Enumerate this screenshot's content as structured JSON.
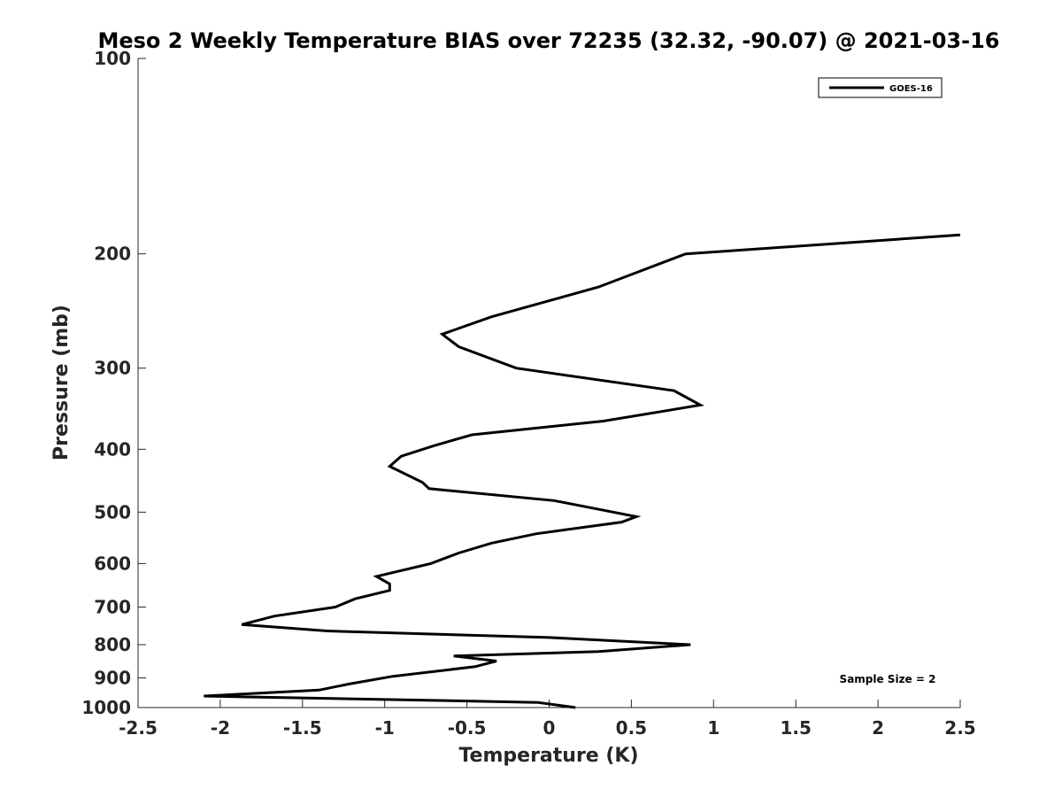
{
  "chart_data": {
    "type": "line",
    "title": "Meso 2 Weekly Temperature BIAS over 72235 (32.32, -90.07) @ 2021-03-16",
    "xlabel": "Temperature (K)",
    "ylabel": "Pressure (mb)",
    "xlim": [
      -2.5,
      2.5
    ],
    "ylim": [
      1000,
      100
    ],
    "yscale": "log",
    "y_reversed": true,
    "grid": false,
    "legend_position": "top-right",
    "x_ticks": [
      "-2.5",
      "-2",
      "-1.5",
      "-1",
      "-0.5",
      "0",
      "0.5",
      "1",
      "1.5",
      "2",
      "2.5"
    ],
    "y_ticks": [
      "100",
      "200",
      "300",
      "400",
      "500",
      "600",
      "700",
      "800",
      "900",
      "1000"
    ],
    "series": [
      {
        "name": "GOES-16",
        "color": "#000000",
        "x": [
          0.16,
          -0.07,
          -0.5,
          -2.1,
          -1.4,
          -1.22,
          -0.95,
          -0.45,
          -0.32,
          -0.58,
          0.3,
          0.86,
          0.0,
          -1.35,
          -1.87,
          -1.67,
          -1.3,
          -1.18,
          -0.97,
          -0.97,
          -1.05,
          -0.72,
          -0.55,
          -0.35,
          -0.08,
          0.44,
          0.53,
          0.03,
          -0.73,
          -0.77,
          -0.97,
          -0.9,
          -0.7,
          -0.47,
          0.33,
          0.92,
          0.76,
          -0.2,
          -0.55,
          -0.65,
          -0.35,
          0.3,
          0.83,
          2.5
        ],
        "y": [
          1000,
          982,
          977,
          960,
          940,
          920,
          895,
          865,
          848,
          833,
          820,
          800,
          780,
          762,
          745,
          723,
          700,
          680,
          660,
          645,
          628,
          600,
          578,
          558,
          540,
          518,
          508,
          480,
          460,
          450,
          425,
          410,
          395,
          380,
          362,
          342,
          325,
          300,
          278,
          266,
          250,
          225,
          200,
          187
        ]
      }
    ],
    "annotations": [
      "Sample Size = 2"
    ]
  }
}
